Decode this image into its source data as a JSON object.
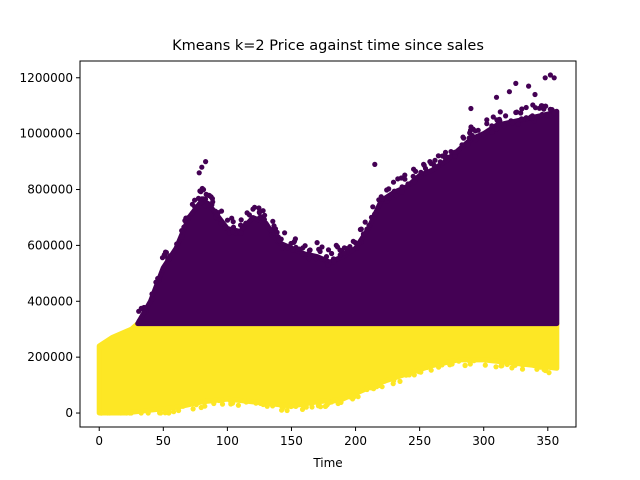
{
  "chart_data": {
    "type": "scatter",
    "title": "Kmeans k=2 Price against time since sales",
    "xlabel": "Time",
    "ylabel": "",
    "xlim": [
      -15,
      372
    ],
    "ylim": [
      -50000,
      1260000
    ],
    "x_ticks": [
      0,
      50,
      100,
      150,
      200,
      250,
      300,
      350
    ],
    "y_ticks": [
      0,
      200000,
      400000,
      600000,
      800000,
      1000000,
      1200000
    ],
    "x_tick_labels": [
      "0",
      "50",
      "100",
      "150",
      "200",
      "250",
      "300",
      "350"
    ],
    "y_tick_labels": [
      "0",
      "200000",
      "400000",
      "600000",
      "800000",
      "1000000",
      "1200000"
    ],
    "grid": false,
    "legend": "none",
    "series": [
      {
        "cluster": 0,
        "color": "#440154",
        "lower_boundary": [
          [
            30,
            320000
          ],
          [
            357,
            320000
          ]
        ],
        "upper_envelope": [
          [
            30,
            320000
          ],
          [
            40,
            400000
          ],
          [
            50,
            520000
          ],
          [
            60,
            590000
          ],
          [
            70,
            700000
          ],
          [
            80,
            760000
          ],
          [
            85,
            750000
          ],
          [
            90,
            720000
          ],
          [
            100,
            660000
          ],
          [
            110,
            650000
          ],
          [
            120,
            700000
          ],
          [
            130,
            680000
          ],
          [
            140,
            610000
          ],
          [
            150,
            590000
          ],
          [
            160,
            570000
          ],
          [
            170,
            560000
          ],
          [
            180,
            540000
          ],
          [
            190,
            560000
          ],
          [
            200,
            590000
          ],
          [
            210,
            660000
          ],
          [
            220,
            760000
          ],
          [
            230,
            790000
          ],
          [
            240,
            810000
          ],
          [
            250,
            850000
          ],
          [
            260,
            870000
          ],
          [
            270,
            900000
          ],
          [
            280,
            940000
          ],
          [
            290,
            980000
          ],
          [
            300,
            1000000
          ],
          [
            310,
            1030000
          ],
          [
            320,
            1040000
          ],
          [
            330,
            1050000
          ],
          [
            340,
            1060000
          ],
          [
            350,
            1070000
          ],
          [
            357,
            1080000
          ]
        ],
        "outliers": [
          [
            80,
            880000
          ],
          [
            83,
            900000
          ],
          [
            78,
            860000
          ],
          [
            120,
            730000
          ],
          [
            125,
            720000
          ],
          [
            170,
            610000
          ],
          [
            185,
            600000
          ],
          [
            215,
            890000
          ],
          [
            258,
            900000
          ],
          [
            262,
            880000
          ],
          [
            290,
            1090000
          ],
          [
            310,
            1130000
          ],
          [
            320,
            1150000
          ],
          [
            325,
            1180000
          ],
          [
            335,
            1170000
          ],
          [
            340,
            1140000
          ],
          [
            348,
            1200000
          ],
          [
            352,
            1210000
          ],
          [
            355,
            1200000
          ],
          [
            345,
            1100000
          ]
        ]
      },
      {
        "cluster": 1,
        "color": "#fde725",
        "upper_boundary": [
          [
            0,
            240000
          ],
          [
            10,
            270000
          ],
          [
            25,
            300000
          ],
          [
            30,
            320000
          ],
          [
            357,
            320000
          ]
        ],
        "lower_envelope": [
          [
            0,
            0
          ],
          [
            20,
            0
          ],
          [
            40,
            10000
          ],
          [
            60,
            20000
          ],
          [
            80,
            40000
          ],
          [
            100,
            50000
          ],
          [
            120,
            40000
          ],
          [
            140,
            30000
          ],
          [
            150,
            25000
          ],
          [
            170,
            40000
          ],
          [
            180,
            45000
          ],
          [
            190,
            50000
          ],
          [
            200,
            70000
          ],
          [
            220,
            110000
          ],
          [
            240,
            140000
          ],
          [
            260,
            170000
          ],
          [
            280,
            190000
          ],
          [
            300,
            190000
          ],
          [
            320,
            180000
          ],
          [
            340,
            170000
          ],
          [
            357,
            160000
          ]
        ]
      }
    ]
  }
}
